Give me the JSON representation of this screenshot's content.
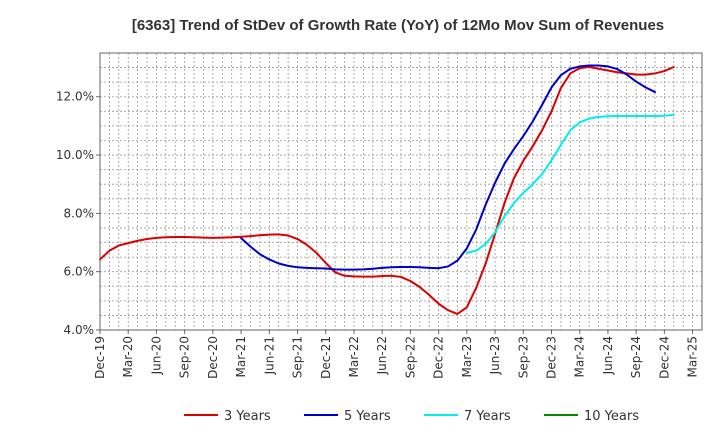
{
  "chart_data": {
    "type": "line",
    "title": "[6363]  Trend of StDev of Growth Rate (YoY) of 12Mo Mov Sum of Revenues",
    "xlabel": "",
    "ylabel": "",
    "ylim": [
      4.0,
      13.5
    ],
    "yticks": [
      4.0,
      6.0,
      8.0,
      10.0,
      12.0
    ],
    "ytick_labels": [
      "4.0%",
      "6.0%",
      "8.0%",
      "10.0%",
      "12.0%"
    ],
    "x_start": "Dec-19",
    "x_months": 64,
    "xtick_labels": [
      "Dec-19",
      "Mar-20",
      "Jun-20",
      "Sep-20",
      "Dec-20",
      "Mar-21",
      "Jun-21",
      "Sep-21",
      "Dec-21",
      "Mar-22",
      "Jun-22",
      "Sep-22",
      "Dec-22",
      "Mar-23",
      "Jun-23",
      "Sep-23",
      "Dec-23",
      "Mar-24",
      "Jun-24",
      "Sep-24",
      "Dec-24",
      "Mar-25"
    ],
    "grid": true,
    "legend_position": "bottom",
    "series": [
      {
        "name": "3 Years",
        "color": "#dd0000",
        "start_index": 0,
        "values": [
          6.42,
          6.72,
          6.9,
          6.98,
          7.06,
          7.12,
          7.16,
          7.18,
          7.19,
          7.19,
          7.18,
          7.17,
          7.16,
          7.17,
          7.18,
          7.2,
          7.22,
          7.25,
          7.27,
          7.28,
          7.24,
          7.12,
          6.92,
          6.65,
          6.3,
          5.98,
          5.86,
          5.84,
          5.83,
          5.83,
          5.85,
          5.86,
          5.82,
          5.68,
          5.47,
          5.2,
          4.9,
          4.68,
          4.55,
          4.78,
          5.45,
          6.28,
          7.3,
          8.35,
          9.2,
          9.8,
          10.3,
          10.85,
          11.5,
          12.3,
          12.8,
          12.98,
          13.02,
          12.96,
          12.9,
          12.84,
          12.8,
          12.76,
          12.76,
          12.8,
          12.88,
          13.02
        ]
      },
      {
        "name": "5 Years",
        "color": "#0000cc",
        "start_index": 15,
        "values": [
          7.15,
          6.86,
          6.6,
          6.42,
          6.28,
          6.2,
          6.15,
          6.13,
          6.12,
          6.11,
          6.08,
          6.07,
          6.07,
          6.08,
          6.1,
          6.13,
          6.15,
          6.16,
          6.16,
          6.15,
          6.13,
          6.12,
          6.18,
          6.38,
          6.8,
          7.45,
          8.3,
          9.05,
          9.7,
          10.2,
          10.65,
          11.15,
          11.72,
          12.32,
          12.74,
          12.96,
          13.04,
          13.07,
          13.07,
          13.04,
          12.95,
          12.76,
          12.52,
          12.32,
          12.16
        ]
      },
      {
        "name": "7 Years",
        "color": "#00eeee",
        "start_index": 39,
        "values": [
          6.65,
          6.72,
          6.95,
          7.35,
          7.9,
          8.35,
          8.7,
          9.0,
          9.35,
          9.82,
          10.35,
          10.85,
          11.12,
          11.25,
          11.31,
          11.33,
          11.34,
          11.34,
          11.34,
          11.34,
          11.34,
          11.35,
          11.38
        ]
      },
      {
        "name": "10 Years",
        "color": "#008800",
        "start_index": 0,
        "values": []
      }
    ]
  }
}
